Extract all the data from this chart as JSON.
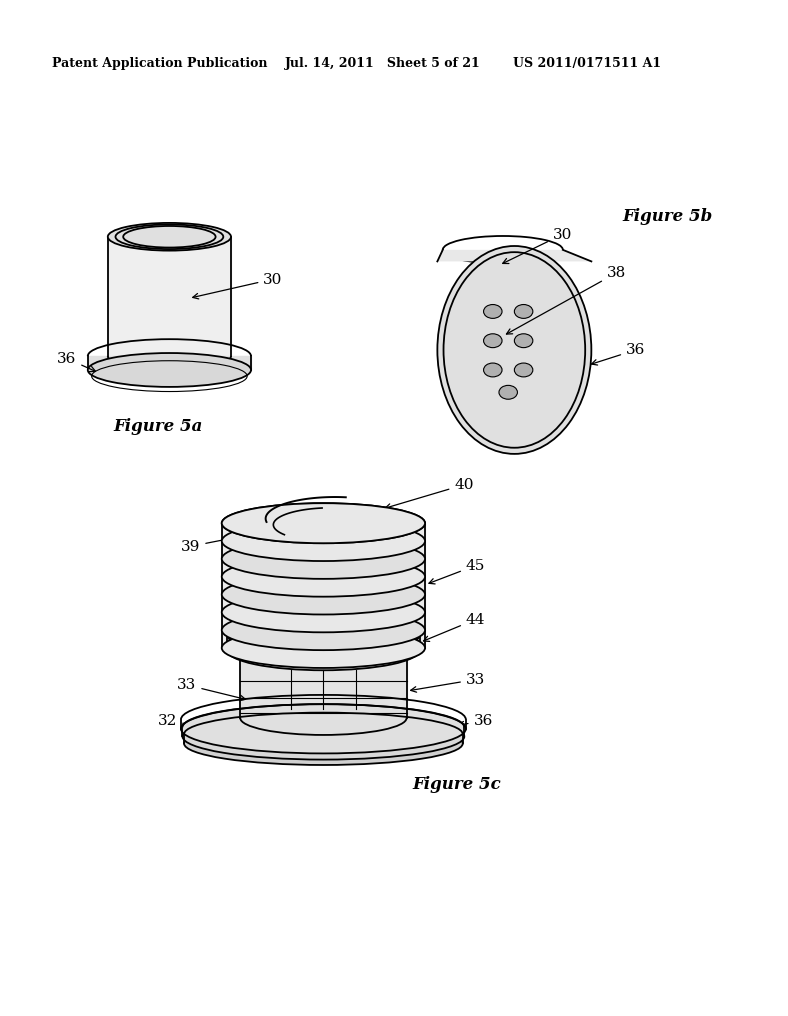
{
  "background_color": "#ffffff",
  "header_left": "Patent Application Publication",
  "header_center": "Jul. 14, 2011   Sheet 5 of 21",
  "header_right": "US 2011/0171511 A1",
  "fig5a_label": "Figure 5a",
  "fig5b_label": "Figure 5b",
  "fig5c_label": "Figure 5c",
  "lc": "#000000",
  "lw_main": 1.3,
  "lw_thin": 0.8,
  "gray_light": "#e8e8e8",
  "gray_mid": "#d8d8d8",
  "gray_dark": "#c8c8c8",
  "font_size_label": 12,
  "font_size_ref": 11,
  "font_size_header": 9
}
